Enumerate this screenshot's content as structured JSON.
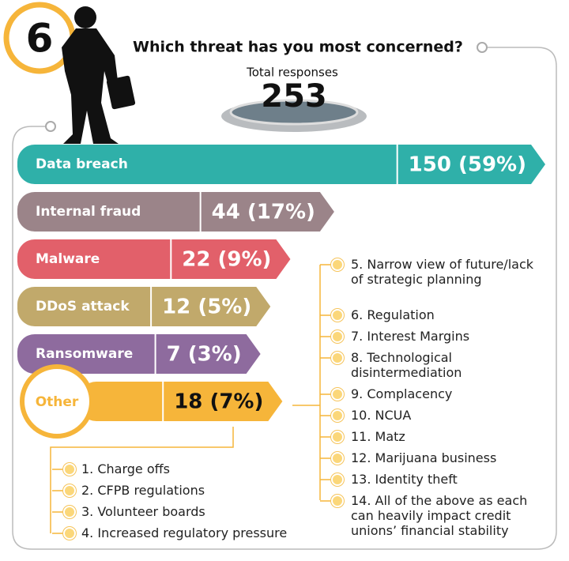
{
  "badge": "6",
  "chart_data": {
    "type": "bar",
    "title": "Which threat has you most concerned?",
    "total_label": "Total responses",
    "total": 253,
    "categories": [
      "Data breach",
      "Internal fraud",
      "Malware",
      "DDoS attack",
      "Ransomware",
      "Other"
    ],
    "values": [
      150,
      44,
      22,
      12,
      7,
      18
    ],
    "value_labels": [
      "150 (59%)",
      "44 (17%)",
      "22 (9%)",
      "12 (5%)",
      "7 (3%)",
      "18 (7%)"
    ],
    "colors": [
      "#2fb0a9",
      "#9b8489",
      "#e2606a",
      "#c1a96b",
      "#8e6b9e",
      "#f6b53a"
    ],
    "other_breakdown_left": [
      "1. Charge offs",
      "2. CFPB regulations",
      "3. Volunteer boards",
      "4. Increased regulatory pressure"
    ],
    "other_breakdown_right": [
      "5. Narrow view of future/lack of strategic planning",
      "6. Regulation",
      "7. Interest Margins",
      "8. Technological disintermediation",
      "9. Complacency",
      "10. NCUA",
      "11.  Matz",
      "12. Marijuana business",
      "13. Identity theft",
      "14. All of the above as each can heavily impact credit unions’ financial stability"
    ]
  }
}
